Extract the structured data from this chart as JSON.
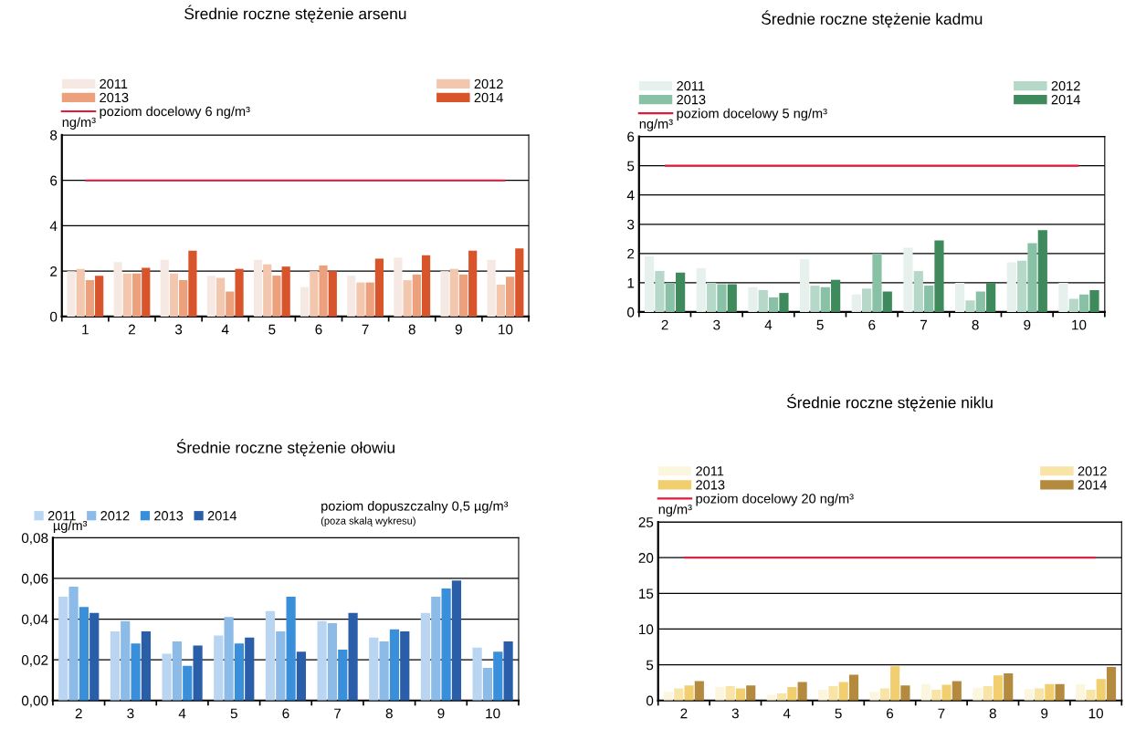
{
  "chart_data": [
    {
      "type": "bar",
      "title": "Średnie roczne stężenie arsenu",
      "ylabel": "ng/m³",
      "categories": [
        "1",
        "2",
        "3",
        "4",
        "5",
        "6",
        "7",
        "8",
        "9",
        "10"
      ],
      "ylim": [
        0,
        8
      ],
      "yticks": [
        0,
        2,
        4,
        6,
        8
      ],
      "grid": "y",
      "legend": "top",
      "series": [
        {
          "name": "2011",
          "color": "#f6e9e4",
          "values": [
            2.0,
            2.4,
            2.5,
            1.8,
            2.5,
            1.3,
            1.8,
            2.6,
            2.0,
            2.5
          ]
        },
        {
          "name": "2012",
          "color": "#f3c6ae",
          "values": [
            2.1,
            1.9,
            1.9,
            1.7,
            2.3,
            2.0,
            1.5,
            1.6,
            2.1,
            1.4
          ]
        },
        {
          "name": "2013",
          "color": "#eca07c",
          "values": [
            1.6,
            1.9,
            1.6,
            1.1,
            1.8,
            2.25,
            1.5,
            1.85,
            1.85,
            1.75
          ]
        },
        {
          "name": "2014",
          "color": "#d8542a",
          "values": [
            1.8,
            2.15,
            2.9,
            2.1,
            2.2,
            2.0,
            2.55,
            2.7,
            2.9,
            3.0
          ]
        }
      ],
      "ref_lines": [
        {
          "axis": "y",
          "value": 6,
          "label": "poziom docelowy 6 ng/m³",
          "color": "#e8173a"
        }
      ]
    },
    {
      "type": "bar",
      "title": "Średnie roczne stężenie kadmu",
      "ylabel": "ng/m³",
      "categories": [
        "2",
        "3",
        "4",
        "5",
        "6",
        "7",
        "8",
        "9",
        "10"
      ],
      "ylim": [
        0,
        6
      ],
      "yticks": [
        0,
        1,
        2,
        3,
        4,
        5,
        6
      ],
      "grid": "y",
      "legend": "top",
      "series": [
        {
          "name": "2011",
          "color": "#e6f1ed",
          "values": [
            1.9,
            1.5,
            0.85,
            1.8,
            0.6,
            2.2,
            1.0,
            1.7,
            1.0
          ]
        },
        {
          "name": "2012",
          "color": "#b6d8c8",
          "values": [
            1.4,
            1.0,
            0.75,
            0.9,
            0.8,
            1.4,
            0.4,
            1.75,
            0.45
          ]
        },
        {
          "name": "2013",
          "color": "#88c1a5",
          "values": [
            1.0,
            0.95,
            0.5,
            0.85,
            2.0,
            0.9,
            0.7,
            2.35,
            0.6
          ]
        },
        {
          "name": "2014",
          "color": "#3f8a5c",
          "values": [
            1.35,
            0.95,
            0.65,
            1.1,
            0.7,
            2.45,
            1.0,
            2.8,
            0.75
          ]
        }
      ],
      "ref_lines": [
        {
          "axis": "y",
          "value": 5,
          "label": "poziom docelowy 5 ng/m³",
          "color": "#e8173a"
        }
      ]
    },
    {
      "type": "bar",
      "title": "Średnie roczne stężenie ołowiu",
      "ylabel": "µg/m³",
      "categories": [
        "2",
        "3",
        "4",
        "5",
        "6",
        "7",
        "8",
        "9",
        "10"
      ],
      "ylim": [
        0,
        0.08
      ],
      "yticks": [
        {
          "value": 0,
          "label": "0,00"
        },
        {
          "value": 0.02,
          "label": "0,02"
        },
        {
          "value": 0.04,
          "label": "0,04"
        },
        {
          "value": 0.06,
          "label": "0,06"
        },
        {
          "value": 0.08,
          "label": "0,08"
        }
      ],
      "grid": "y",
      "legend": "top",
      "series": [
        {
          "name": "2011",
          "color": "#b9d5f1",
          "values": [
            0.051,
            0.034,
            0.023,
            0.032,
            0.044,
            0.039,
            0.031,
            0.043,
            0.026
          ]
        },
        {
          "name": "2012",
          "color": "#8cbbe8",
          "values": [
            0.056,
            0.039,
            0.029,
            0.041,
            0.034,
            0.038,
            0.029,
            0.051,
            0.016
          ]
        },
        {
          "name": "2013",
          "color": "#3a8fdb",
          "values": [
            0.046,
            0.028,
            0.017,
            0.028,
            0.051,
            0.025,
            0.035,
            0.055,
            0.024
          ]
        },
        {
          "name": "2014",
          "color": "#2a5ea8",
          "values": [
            0.043,
            0.034,
            0.027,
            0.031,
            0.024,
            0.043,
            0.034,
            0.059,
            0.029
          ]
        }
      ],
      "annotations": [
        "poziom dopuszczalny 0,5 µg/m³",
        "(poza skalą wykresu)"
      ]
    },
    {
      "type": "bar",
      "title": "Średnie roczne stężenie niklu",
      "ylabel": "ng/m³",
      "categories": [
        "2",
        "3",
        "4",
        "5",
        "6",
        "7",
        "8",
        "9",
        "10"
      ],
      "ylim": [
        0,
        25
      ],
      "yticks": [
        0,
        5,
        10,
        15,
        20,
        25
      ],
      "grid": "y",
      "legend": "top",
      "series": [
        {
          "name": "2011",
          "color": "#fdf6df",
          "values": [
            1.2,
            1.9,
            0.8,
            1.5,
            1.2,
            2.3,
            1.8,
            1.6,
            2.3
          ]
        },
        {
          "name": "2012",
          "color": "#f8e4a6",
          "values": [
            1.7,
            2.0,
            1.0,
            2.0,
            1.7,
            1.5,
            2.0,
            1.7,
            1.5
          ]
        },
        {
          "name": "2013",
          "color": "#f2cf6e",
          "values": [
            2.1,
            1.7,
            1.9,
            2.6,
            4.8,
            2.2,
            3.5,
            2.3,
            3.0
          ]
        },
        {
          "name": "2014",
          "color": "#b38a3e",
          "values": [
            2.7,
            2.1,
            2.6,
            3.6,
            2.1,
            2.7,
            3.8,
            2.3,
            4.7
          ]
        }
      ],
      "ref_lines": [
        {
          "axis": "y",
          "value": 20,
          "label": "poziom docelowy 20 ng/m³",
          "color": "#e8173a"
        }
      ]
    }
  ]
}
